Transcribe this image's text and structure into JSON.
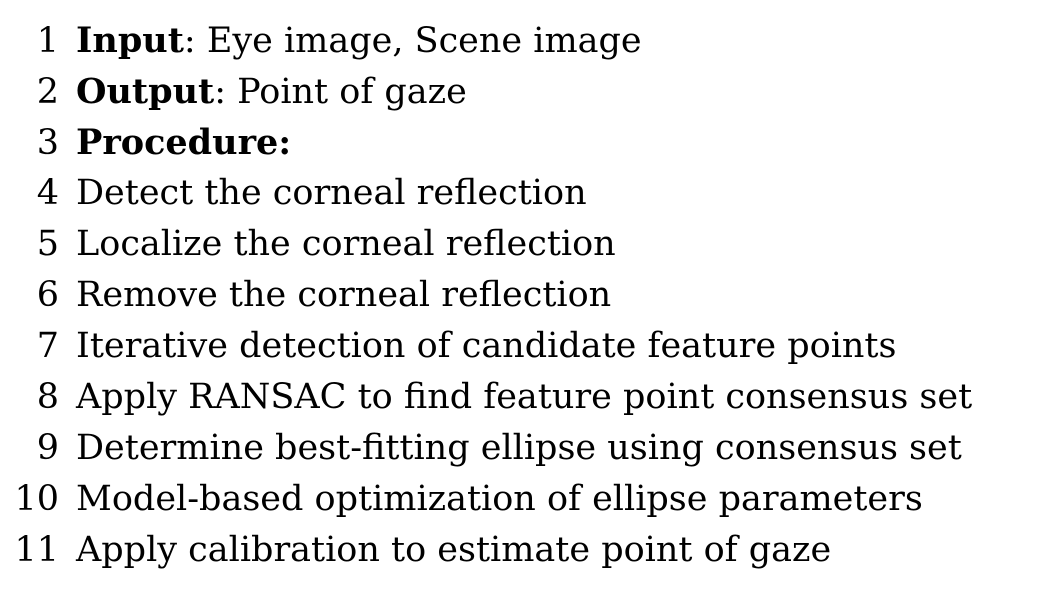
{
  "algorithm": {
    "lines": [
      {
        "num": "1",
        "keyword": "Input",
        "text": ": Eye image, Scene image"
      },
      {
        "num": "2",
        "keyword": "Output",
        "text": ": Point of gaze"
      },
      {
        "num": "3",
        "keyword": "Procedure:",
        "text": ""
      },
      {
        "num": "4",
        "keyword": "",
        "text": "Detect the corneal reflection"
      },
      {
        "num": "5",
        "keyword": "",
        "text": "Localize the corneal reflection"
      },
      {
        "num": "6",
        "keyword": "",
        "text": "Remove the corneal reflection"
      },
      {
        "num": "7",
        "keyword": "",
        "text": "Iterative detection of candidate feature points"
      },
      {
        "num": "8",
        "keyword": "",
        "text": "Apply RANSAC to find feature point consensus set"
      },
      {
        "num": "9",
        "keyword": "",
        "text": "Determine best-fitting ellipse using consensus set"
      },
      {
        "num": "10",
        "keyword": "",
        "text": "Model-based optimization of ellipse parameters"
      },
      {
        "num": "11",
        "keyword": "",
        "text": "Apply calibration to estimate point of gaze"
      }
    ]
  }
}
